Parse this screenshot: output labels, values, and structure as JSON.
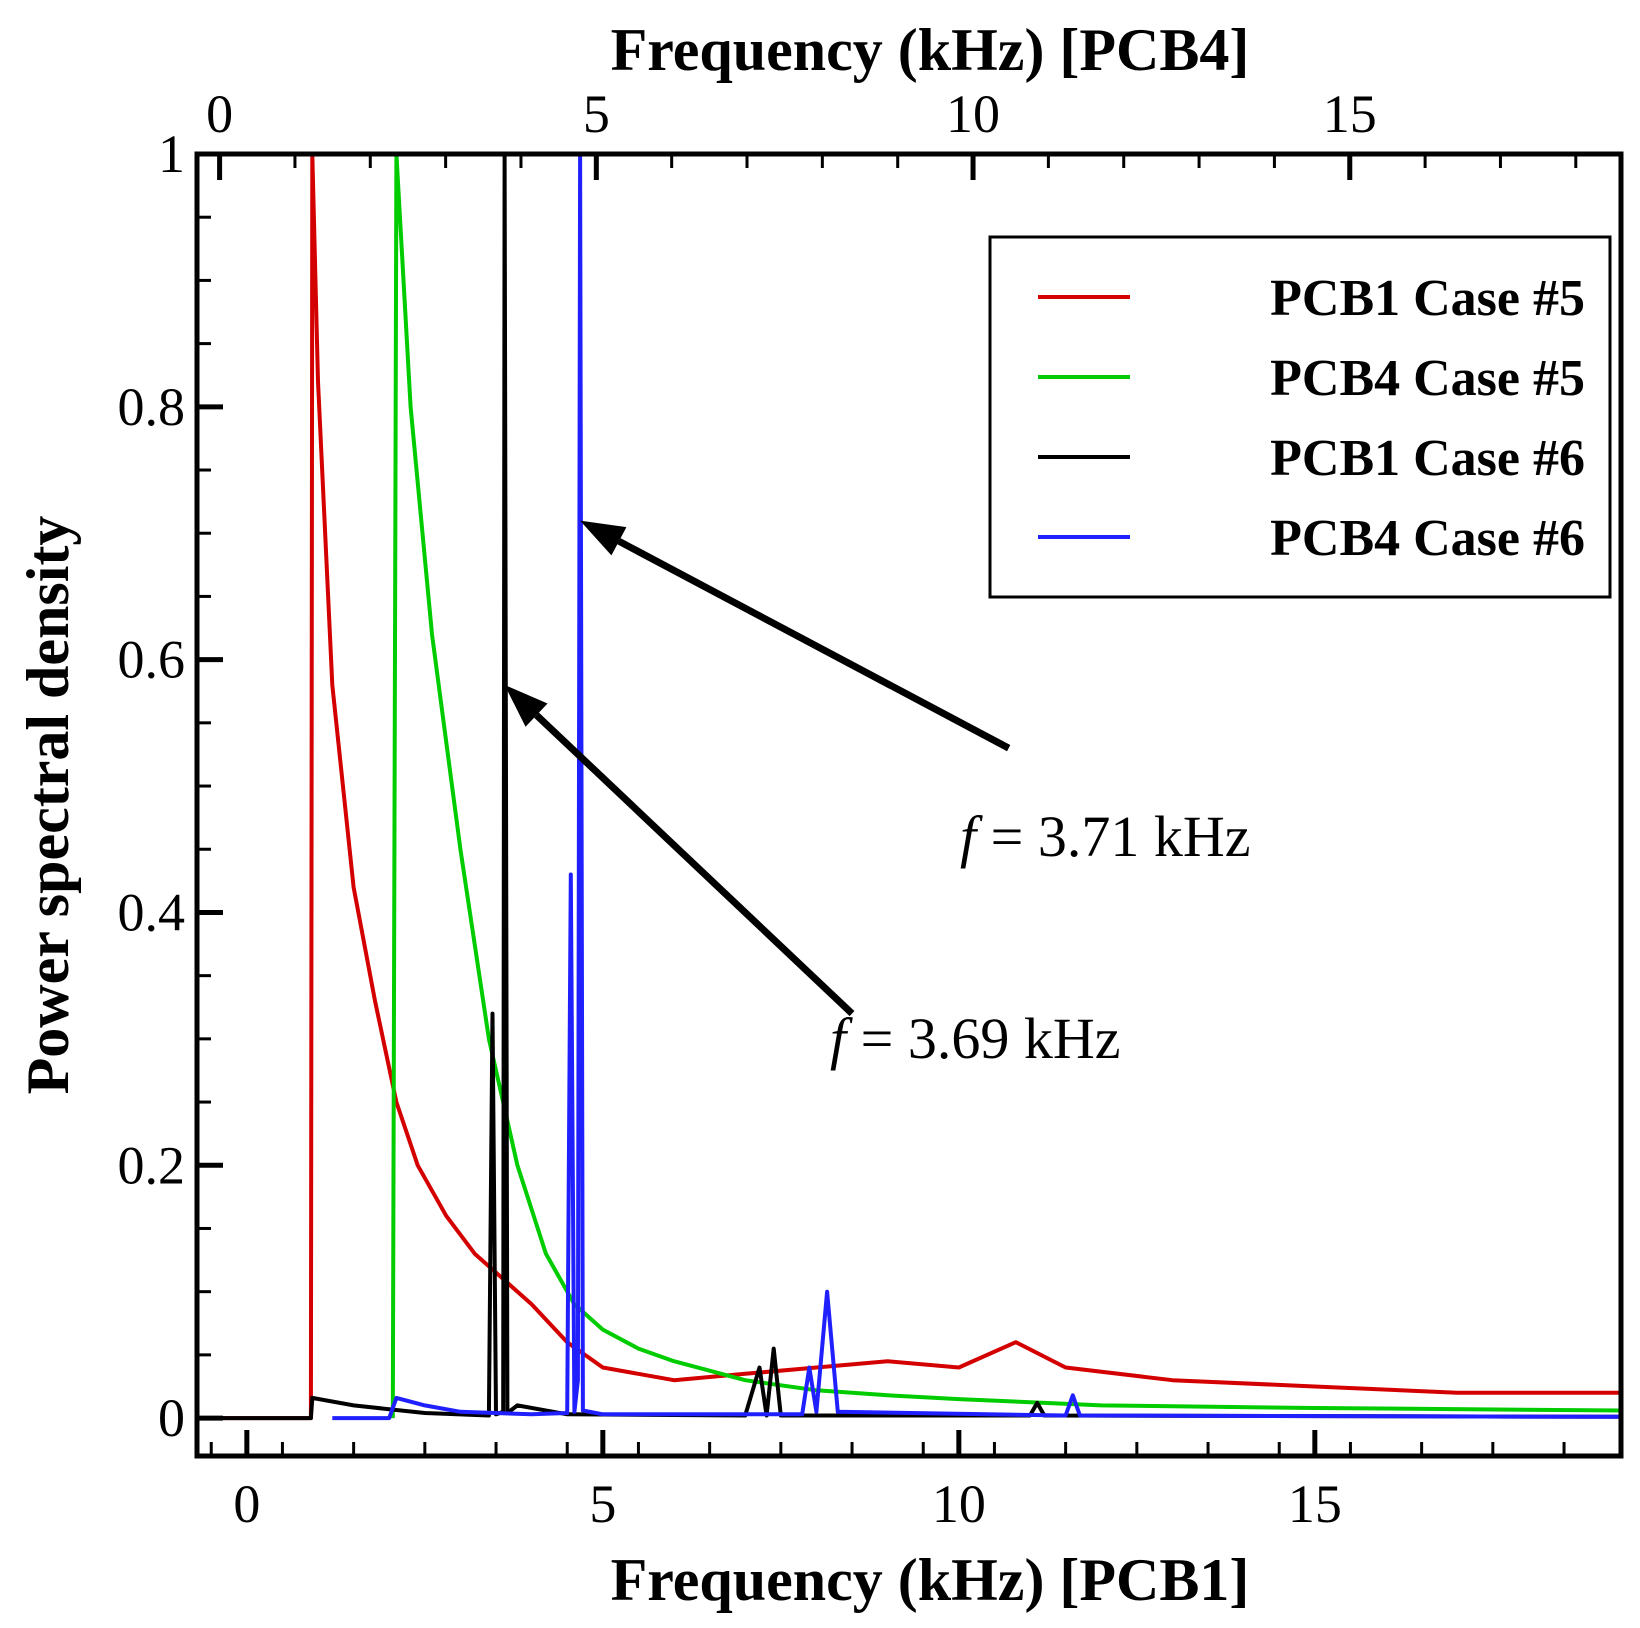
{
  "chart_data": {
    "type": "line",
    "xlabel": "Frequency (kHz) [PCB1]",
    "x2label": "Frequency (kHz) [PCB4]",
    "ylabel": "Power spectral density",
    "xlim": [
      -0.7,
      19.3
    ],
    "x2lim": [
      -0.3,
      18.6
    ],
    "ylim": [
      -0.03,
      1.0
    ],
    "xticks": [
      0,
      5,
      10,
      15
    ],
    "x2ticks": [
      0,
      5,
      10,
      15
    ],
    "yticks": [
      0,
      0.2,
      0.4,
      0.6,
      0.8,
      1
    ],
    "ytick_labels": [
      "0",
      "0.2",
      "0.4",
      "0.6",
      "0.8",
      "1"
    ],
    "grid": false,
    "legend_position": "top-right",
    "series": [
      {
        "name": "PCB1 Case #5",
        "color": "#d40000",
        "axis": "bottom",
        "points": [
          [
            -0.7,
            0.0
          ],
          [
            0.9,
            0.0
          ],
          [
            0.92,
            1.0
          ],
          [
            1.0,
            0.82
          ],
          [
            1.2,
            0.58
          ],
          [
            1.5,
            0.42
          ],
          [
            1.8,
            0.33
          ],
          [
            2.1,
            0.25
          ],
          [
            2.4,
            0.2
          ],
          [
            2.8,
            0.16
          ],
          [
            3.2,
            0.13
          ],
          [
            3.6,
            0.11
          ],
          [
            4.0,
            0.09
          ],
          [
            4.5,
            0.06
          ],
          [
            5.0,
            0.04
          ],
          [
            6.0,
            0.03
          ],
          [
            7.0,
            0.035
          ],
          [
            8.0,
            0.04
          ],
          [
            9.0,
            0.045
          ],
          [
            10.0,
            0.04
          ],
          [
            10.8,
            0.06
          ],
          [
            11.5,
            0.04
          ],
          [
            13.0,
            0.03
          ],
          [
            15.0,
            0.025
          ],
          [
            17.0,
            0.02
          ],
          [
            19.3,
            0.02
          ]
        ]
      },
      {
        "name": "PCB4 Case #5",
        "color": "#00cc00",
        "axis": "bottom",
        "points": [
          [
            2.05,
            0.0
          ],
          [
            2.1,
            1.0
          ],
          [
            2.3,
            0.8
          ],
          [
            2.6,
            0.62
          ],
          [
            3.0,
            0.45
          ],
          [
            3.4,
            0.3
          ],
          [
            3.8,
            0.2
          ],
          [
            4.2,
            0.13
          ],
          [
            4.6,
            0.09
          ],
          [
            5.0,
            0.07
          ],
          [
            5.5,
            0.055
          ],
          [
            6.0,
            0.045
          ],
          [
            7.0,
            0.03
          ],
          [
            8.0,
            0.022
          ],
          [
            9.0,
            0.018
          ],
          [
            10.0,
            0.015
          ],
          [
            12.0,
            0.01
          ],
          [
            15.0,
            0.008
          ],
          [
            19.3,
            0.006
          ]
        ]
      },
      {
        "name": "PCB1 Case #6",
        "color": "#000000",
        "axis": "bottom",
        "points": [
          [
            -0.7,
            0.0
          ],
          [
            0.9,
            0.0
          ],
          [
            0.92,
            0.016
          ],
          [
            1.5,
            0.01
          ],
          [
            2.5,
            0.004
          ],
          [
            3.4,
            0.002
          ],
          [
            3.45,
            0.32
          ],
          [
            3.5,
            0.003
          ],
          [
            3.6,
            0.005
          ],
          [
            3.62,
            1.0
          ],
          [
            3.66,
            0.004
          ],
          [
            3.8,
            0.01
          ],
          [
            4.5,
            0.003
          ],
          [
            7.0,
            0.002
          ],
          [
            7.2,
            0.04
          ],
          [
            7.3,
            0.002
          ],
          [
            7.4,
            0.055
          ],
          [
            7.5,
            0.002
          ],
          [
            11.0,
            0.002
          ],
          [
            11.1,
            0.012
          ],
          [
            11.2,
            0.002
          ],
          [
            19.3,
            0.001
          ]
        ]
      },
      {
        "name": "PCB4 Case #6",
        "color": "#2020ff",
        "axis": "bottom",
        "points": [
          [
            1.2,
            0.0
          ],
          [
            2.0,
            0.0
          ],
          [
            2.1,
            0.016
          ],
          [
            2.5,
            0.01
          ],
          [
            3.0,
            0.005
          ],
          [
            4.0,
            0.003
          ],
          [
            4.5,
            0.004
          ],
          [
            4.55,
            0.43
          ],
          [
            4.6,
            0.005
          ],
          [
            4.65,
            0.03
          ],
          [
            4.68,
            1.0
          ],
          [
            4.72,
            0.006
          ],
          [
            5.0,
            0.003
          ],
          [
            7.8,
            0.003
          ],
          [
            7.9,
            0.04
          ],
          [
            8.0,
            0.005
          ],
          [
            8.15,
            0.1
          ],
          [
            8.3,
            0.005
          ],
          [
            11.5,
            0.002
          ],
          [
            11.6,
            0.018
          ],
          [
            11.7,
            0.002
          ],
          [
            19.3,
            0.001
          ]
        ]
      }
    ],
    "annotations": [
      {
        "prefix": "f",
        "text": " = 3.71 kHz",
        "arrow_to": [
          4.68,
          0.71
        ],
        "from": [
          10.7,
          0.53
        ]
      },
      {
        "prefix": "f",
        "text": " = 3.69 kHz",
        "arrow_to": [
          3.62,
          0.58
        ],
        "from": [
          8.5,
          0.32
        ]
      }
    ]
  }
}
